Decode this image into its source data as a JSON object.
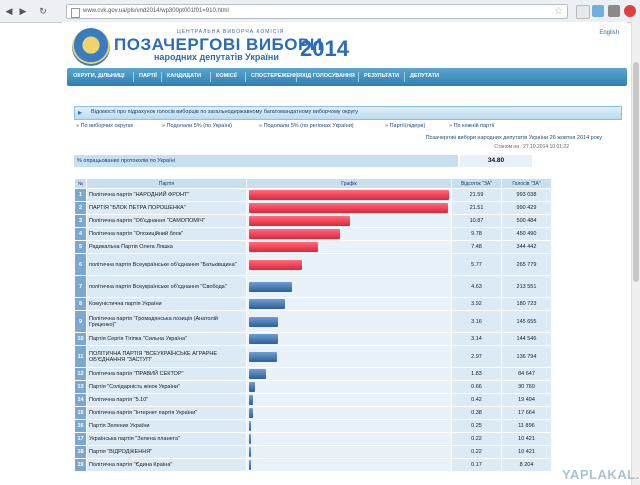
{
  "browser": {
    "url": "www.cvk.gov.ua/pls/vnd2014/wp300pt001f01=910.html"
  },
  "header": {
    "org": "ЦЕНТРАЛЬНА ВИБОРЧА КОМІСІЯ",
    "title": "ПОЗАЧЕРГОВІ ВИБОРИ",
    "subtitle": "народних депутатів України",
    "year": "2014",
    "lang": "English"
  },
  "menu": [
    "ОКРУГИ, ДІЛЬНИЦІ",
    "ПАРТІЇ",
    "КАНДИДАТИ",
    "КОМІСІЇ",
    "СПОСТЕРЕЖЕННЯ",
    "ХІД ГОЛОСУВАННЯ",
    "РЕЗУЛЬТАТИ",
    "ДЕПУТАТИ"
  ],
  "section": {
    "title": "Відомості про підрахунок голосів виборців по загальнодержавному багатомандатному виборчому округу"
  },
  "links": [
    "По виборчих округах",
    "Подолали 5% (по Україні)",
    "Подолали 5% (по регіонах України)",
    "Партії(лідери)",
    "По кожній партії"
  ],
  "subtitle": "Позачергові вибори народних депутатів України 26 жовтня 2014 року",
  "status": "Станом на : 27.10.2014 10:01:22",
  "processed": {
    "label": "% опрацьованих протоколів по Україні",
    "value": "34.80"
  },
  "table": {
    "headers": [
      "№",
      "Партія",
      "Графік",
      "Відсоток \"ЗА\"",
      "Голосів \"ЗА\""
    ],
    "rows": [
      {
        "no": "1",
        "party": "Політична партія \"НАРОДНИЙ ФРОНТ\"",
        "pct": "21.59",
        "votes": "993 038",
        "bar": 21.59,
        "color": "red"
      },
      {
        "no": "2",
        "party": "ПАРТІЯ \"БЛОК ПЕТРА ПОРОШЕНКА\"",
        "pct": "21.51",
        "votes": "990 429",
        "bar": 21.51,
        "color": "red"
      },
      {
        "no": "3",
        "party": "Політична партія \"Об'єднання \"САМОПОМІЧ\"",
        "pct": "10.87",
        "votes": "500 484",
        "bar": 10.87,
        "color": "red"
      },
      {
        "no": "4",
        "party": "Політична партія \"Опозиційний блок\"",
        "pct": "9.78",
        "votes": "450 490",
        "bar": 9.78,
        "color": "red"
      },
      {
        "no": "5",
        "party": "Радикальна Партія Олега Ляшка",
        "pct": "7.48",
        "votes": "344 442",
        "bar": 7.48,
        "color": "red"
      },
      {
        "no": "6",
        "party": "політична партія Всеукраїнське об'єднання \"Батьківщина\"",
        "pct": "5.77",
        "votes": "265 779",
        "bar": 5.77,
        "color": "red"
      },
      {
        "no": "7",
        "party": "політична партія Всеукраїнське об'єднання \"Свобода\"",
        "pct": "4.63",
        "votes": "213 551",
        "bar": 4.63,
        "color": "blue"
      },
      {
        "no": "8",
        "party": "Комуністична партія України",
        "pct": "3.92",
        "votes": "180 723",
        "bar": 3.92,
        "color": "blue"
      },
      {
        "no": "9",
        "party": "Політична партія \"Громадянська позиція (Анатолій Гриценко)\"",
        "pct": "3.16",
        "votes": "145 655",
        "bar": 3.16,
        "color": "blue"
      },
      {
        "no": "10",
        "party": "Партія Сергія Тігіпка \"Сильна Україна\"",
        "pct": "3.14",
        "votes": "144 546",
        "bar": 3.14,
        "color": "blue"
      },
      {
        "no": "11",
        "party": "ПОЛІТИЧНА ПАРТІЯ \"ВСЕУКРАЇНСЬКЕ АГРАРНЕ ОБ'ЄДНАННЯ \"ЗАСТУП\"",
        "pct": "2.97",
        "votes": "136 794",
        "bar": 2.97,
        "color": "blue"
      },
      {
        "no": "12",
        "party": "Політична партія \"ПРАВИЙ СЕКТОР\"",
        "pct": "1.83",
        "votes": "84 647",
        "bar": 1.83,
        "color": "blue"
      },
      {
        "no": "13",
        "party": "Партія \"Солідарність жінок України\"",
        "pct": "0.66",
        "votes": "30 760",
        "bar": 0.66,
        "color": "blue"
      },
      {
        "no": "14",
        "party": "Політична партія \"5.10\"",
        "pct": "0.42",
        "votes": "19 494",
        "bar": 0.42,
        "color": "blue"
      },
      {
        "no": "15",
        "party": "Політична партія \"Інтернет партія України\"",
        "pct": "0.38",
        "votes": "17 664",
        "bar": 0.38,
        "color": "blue"
      },
      {
        "no": "16",
        "party": "Партія Зелених України",
        "pct": "0.25",
        "votes": "11 896",
        "bar": 0.25,
        "color": "blue"
      },
      {
        "no": "17",
        "party": "Українська партія \"Зелена планета\"",
        "pct": "0.22",
        "votes": "10 421",
        "bar": 0.22,
        "color": "blue"
      },
      {
        "no": "18",
        "party": "Партія \"ВІДРОДЖЕННЯ\"",
        "pct": "0.22",
        "votes": "10 421",
        "bar": 0.22,
        "color": "blue"
      },
      {
        "no": "19",
        "party": "Політична партія \"Єдина Країна\"",
        "pct": "0.17",
        "votes": "8 204",
        "bar": 0.17,
        "color": "blue"
      }
    ]
  },
  "watermark": "YAPLAKAL.COM"
}
